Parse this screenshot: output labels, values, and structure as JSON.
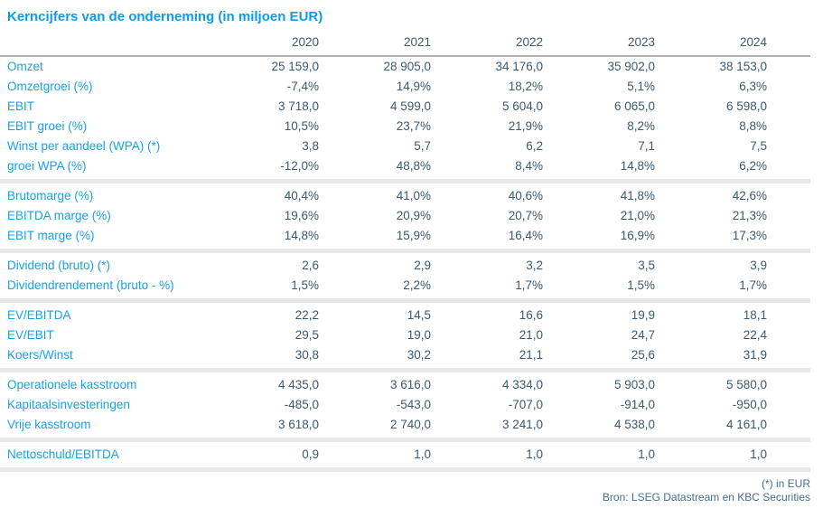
{
  "table": {
    "title": "Kerncijfers van de onderneming (in miljoen EUR)",
    "columns": [
      "2020",
      "2021",
      "2022",
      "2023",
      "2024"
    ],
    "sections": [
      {
        "rows": [
          {
            "label": "Omzet",
            "values": [
              "25 159,0",
              "28 905,0",
              "34 176,0",
              "35 902,0",
              "38 153,0"
            ]
          },
          {
            "label": "Omzetgroei (%)",
            "values": [
              "-7,4%",
              "14,9%",
              "18,2%",
              "5,1%",
              "6,3%"
            ]
          },
          {
            "label": "EBIT",
            "values": [
              "3 718,0",
              "4 599,0",
              "5 604,0",
              "6 065,0",
              "6 598,0"
            ]
          },
          {
            "label": "EBIT groei (%)",
            "values": [
              "10,5%",
              "23,7%",
              "21,9%",
              "8,2%",
              "8,8%"
            ]
          },
          {
            "label": "Winst per aandeel (WPA) (*)",
            "values": [
              "3,8",
              "5,7",
              "6,2",
              "7,1",
              "7,5"
            ]
          },
          {
            "label": "groei WPA (%)",
            "values": [
              "-12,0%",
              "48,8%",
              "8,4%",
              "14,8%",
              "6,2%"
            ]
          }
        ]
      },
      {
        "rows": [
          {
            "label": "Brutomarge (%)",
            "values": [
              "40,4%",
              "41,0%",
              "40,6%",
              "41,8%",
              "42,6%"
            ]
          },
          {
            "label": "EBITDA marge (%)",
            "values": [
              "19,6%",
              "20,9%",
              "20,7%",
              "21,0%",
              "21,3%"
            ]
          },
          {
            "label": "EBIT marge (%)",
            "values": [
              "14,8%",
              "15,9%",
              "16,4%",
              "16,9%",
              "17,3%"
            ]
          }
        ]
      },
      {
        "rows": [
          {
            "label": "Dividend (bruto) (*)",
            "values": [
              "2,6",
              "2,9",
              "3,2",
              "3,5",
              "3,9"
            ]
          },
          {
            "label": "Dividendrendement (bruto - %)",
            "values": [
              "1,5%",
              "2,2%",
              "1,7%",
              "1,5%",
              "1,7%"
            ]
          }
        ]
      },
      {
        "rows": [
          {
            "label": "EV/EBITDA",
            "values": [
              "22,2",
              "14,5",
              "16,6",
              "19,9",
              "18,1"
            ]
          },
          {
            "label": "EV/EBIT",
            "values": [
              "29,5",
              "19,0",
              "21,0",
              "24,7",
              "22,4"
            ]
          },
          {
            "label": "Koers/Winst",
            "values": [
              "30,8",
              "30,2",
              "21,1",
              "25,6",
              "31,9"
            ]
          }
        ]
      },
      {
        "rows": [
          {
            "label": "Operationele kasstroom",
            "values": [
              "4 435,0",
              "3 616,0",
              "4 334,0",
              "5 903,0",
              "5 580,0"
            ]
          },
          {
            "label": "Kapitaalsinvesteringen",
            "values": [
              "-485,0",
              "-543,0",
              "-707,0",
              "-914,0",
              "-950,0"
            ]
          },
          {
            "label": "Vrije kasstroom",
            "values": [
              "3 618,0",
              "2 740,0",
              "3 241,0",
              "4 538,0",
              "4 161,0"
            ]
          }
        ]
      },
      {
        "rows": [
          {
            "label": "Nettoschuld/EBITDA",
            "values": [
              "0,9",
              "1,0",
              "1,0",
              "1,0",
              "1,0"
            ]
          }
        ]
      }
    ],
    "footnote": "(*) in EUR",
    "source": "Bron: LSEG Datastream en KBC Securities"
  },
  "colors": {
    "accent_blue": "#18a2e5",
    "title_blue": "#0f9ce4",
    "value_dark": "#3c5a70",
    "footer_blue": "#45708e",
    "header_line_gray": "#b2b2b2",
    "section_band_gray": "#e7e7e7"
  }
}
